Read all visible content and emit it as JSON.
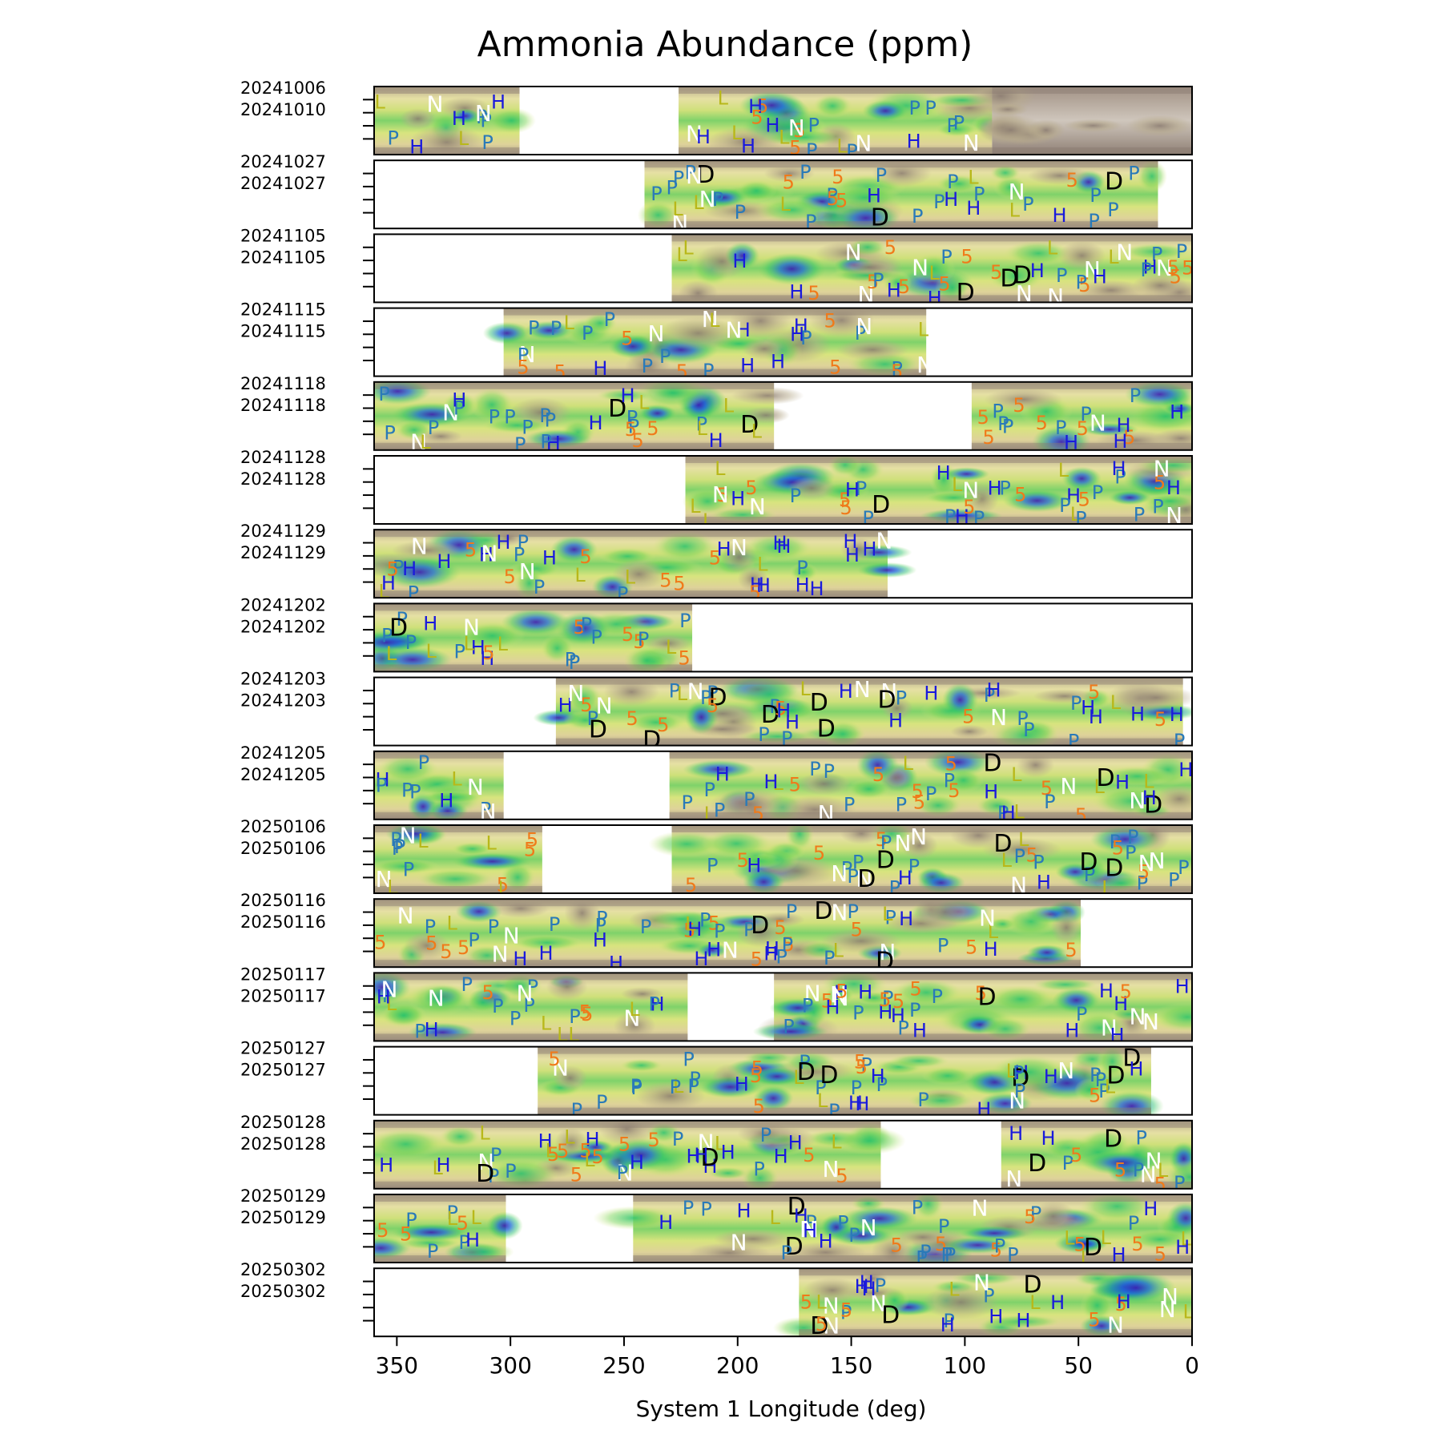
{
  "chart_data": {
    "type": "heatmap",
    "title": "Ammonia Abundance (ppm)",
    "xlabel": "System 1 Longitude (deg)",
    "xlim": [
      360,
      0
    ],
    "xticks": [
      350,
      300,
      250,
      200,
      150,
      100,
      50,
      0
    ],
    "marker_letters": [
      "P",
      "H",
      "N",
      "5",
      "L",
      "D"
    ],
    "marker_colors": {
      "P": "#2a7ab8",
      "H": "#1a1adc",
      "N": "#ffffff",
      "5": "#f07a1a",
      "L": "#b8b81a",
      "D": "#000000"
    },
    "colormap": [
      "#3a1db0",
      "#1c6cd6",
      "#1db2a0",
      "#28c26a",
      "#7ed65a",
      "#d8e67a",
      "#e6dc9c",
      "#b6a98a",
      "#8a7b70"
    ],
    "panels": [
      {
        "label_top": "20241006",
        "label_bottom": "20241010",
        "segments": [
          [
            360,
            296
          ],
          [
            226,
            88
          ]
        ],
        "dark_seg": [
          88,
          0
        ]
      },
      {
        "label_top": "20241027",
        "label_bottom": "20241027",
        "segments": [
          [
            241,
            15
          ]
        ]
      },
      {
        "label_top": "20241105",
        "label_bottom": "20241105",
        "segments": [
          [
            229,
            0
          ]
        ]
      },
      {
        "label_top": "20241115",
        "label_bottom": "20241115",
        "segments": [
          [
            303,
            117
          ]
        ]
      },
      {
        "label_top": "20241118",
        "label_bottom": "20241118",
        "segments": [
          [
            360,
            184
          ],
          [
            97,
            0
          ]
        ]
      },
      {
        "label_top": "20241128",
        "label_bottom": "20241128",
        "segments": [
          [
            223,
            0
          ]
        ]
      },
      {
        "label_top": "20241129",
        "label_bottom": "20241129",
        "segments": [
          [
            360,
            134
          ]
        ]
      },
      {
        "label_top": "20241202",
        "label_bottom": "20241202",
        "segments": [
          [
            360,
            220
          ]
        ]
      },
      {
        "label_top": "20241203",
        "label_bottom": "20241203",
        "segments": [
          [
            280,
            4
          ]
        ]
      },
      {
        "label_top": "20241205",
        "label_bottom": "20241205",
        "segments": [
          [
            360,
            303
          ],
          [
            230,
            0
          ]
        ]
      },
      {
        "label_top": "20250106",
        "label_bottom": "20250106",
        "segments": [
          [
            360,
            286
          ],
          [
            229,
            0
          ]
        ]
      },
      {
        "label_top": "20250116",
        "label_bottom": "20250116",
        "segments": [
          [
            360,
            49
          ]
        ]
      },
      {
        "label_top": "20250117",
        "label_bottom": "20250117",
        "segments": [
          [
            360,
            222
          ],
          [
            184,
            0
          ]
        ]
      },
      {
        "label_top": "20250127",
        "label_bottom": "20250127",
        "segments": [
          [
            288,
            18
          ]
        ]
      },
      {
        "label_top": "20250128",
        "label_bottom": "20250128",
        "segments": [
          [
            360,
            137
          ],
          [
            84,
            0
          ]
        ]
      },
      {
        "label_top": "20250129",
        "label_bottom": "20250129",
        "segments": [
          [
            360,
            302
          ],
          [
            246,
            0
          ]
        ]
      },
      {
        "label_top": "20250302",
        "label_bottom": "20250302",
        "segments": [
          [
            173,
            0
          ]
        ]
      }
    ]
  }
}
